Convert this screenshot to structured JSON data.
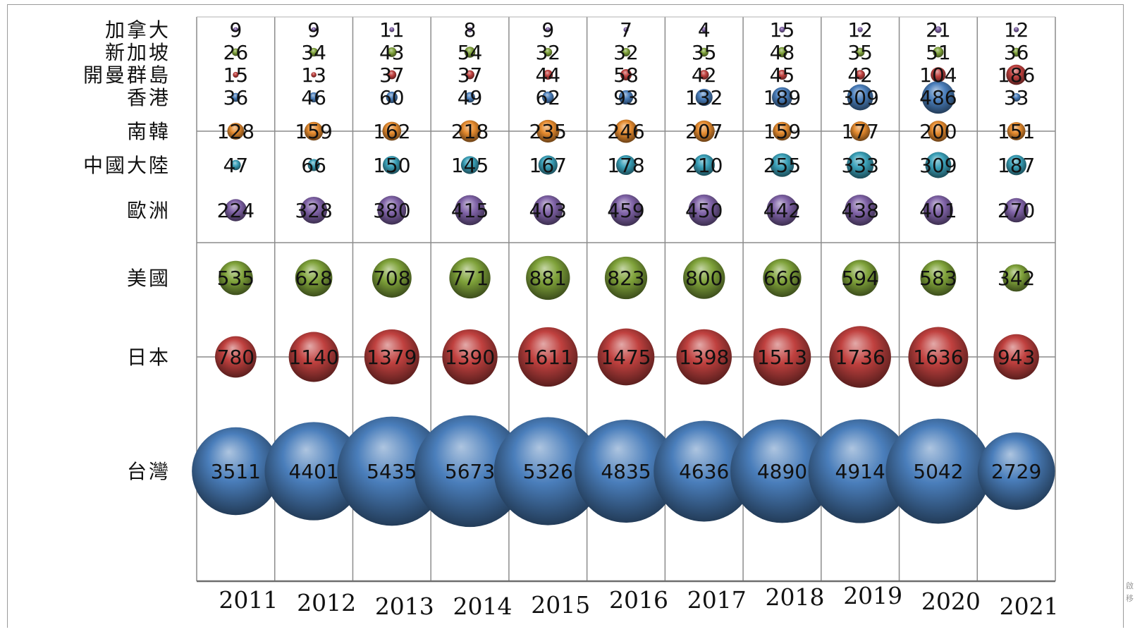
{
  "chart_data": {
    "type": "bubble",
    "title": "",
    "categories": [
      "加拿大",
      "新加坡",
      "開曼群島",
      "香港",
      "南韓",
      "中國大陸",
      "歐洲",
      "美國",
      "日本",
      "台灣"
    ],
    "years": [
      "2011",
      "2012",
      "2013",
      "2014",
      "2015",
      "2016",
      "2017",
      "2018",
      "2019",
      "2020",
      "2021"
    ],
    "series": [
      {
        "name": "加拿大",
        "color": "#7f62a6",
        "values": [
          9,
          9,
          11,
          8,
          9,
          7,
          4,
          15,
          12,
          21,
          12
        ]
      },
      {
        "name": "新加坡",
        "color": "#7fa23a",
        "values": [
          26,
          34,
          43,
          54,
          32,
          32,
          35,
          48,
          35,
          51,
          36
        ]
      },
      {
        "name": "開曼群島",
        "color": "#c0413f",
        "values": [
          15,
          13,
          37,
          37,
          44,
          58,
          42,
          45,
          42,
          104,
          186
        ]
      },
      {
        "name": "香港",
        "color": "#4a7ebb",
        "values": [
          36,
          46,
          60,
          49,
          62,
          93,
          132,
          189,
          309,
          486,
          33
        ]
      },
      {
        "name": "南韓",
        "color": "#e48a2e",
        "values": [
          128,
          159,
          162,
          218,
          235,
          246,
          207,
          159,
          177,
          200,
          151
        ]
      },
      {
        "name": "中國大陸",
        "color": "#3aa0b8",
        "values": [
          47,
          66,
          150,
          145,
          167,
          178,
          210,
          255,
          333,
          309,
          187
        ]
      },
      {
        "name": "歐洲",
        "color": "#7f62a6",
        "values": [
          224,
          328,
          380,
          415,
          403,
          459,
          450,
          442,
          438,
          401,
          270
        ]
      },
      {
        "name": "美國",
        "color": "#7fa23a",
        "values": [
          535,
          628,
          708,
          771,
          881,
          823,
          800,
          666,
          594,
          583,
          342
        ]
      },
      {
        "name": "日本",
        "color": "#c0413f",
        "values": [
          780,
          1140,
          1379,
          1390,
          1611,
          1475,
          1398,
          1513,
          1736,
          1636,
          943
        ]
      },
      {
        "name": "台灣",
        "color": "#4a7ebb",
        "values": [
          3511,
          4401,
          5435,
          5673,
          5326,
          4835,
          4636,
          4890,
          4914,
          5042,
          2729
        ]
      }
    ],
    "grid": true,
    "legend": "none"
  },
  "edge_note": [
    "啟",
    "移"
  ]
}
